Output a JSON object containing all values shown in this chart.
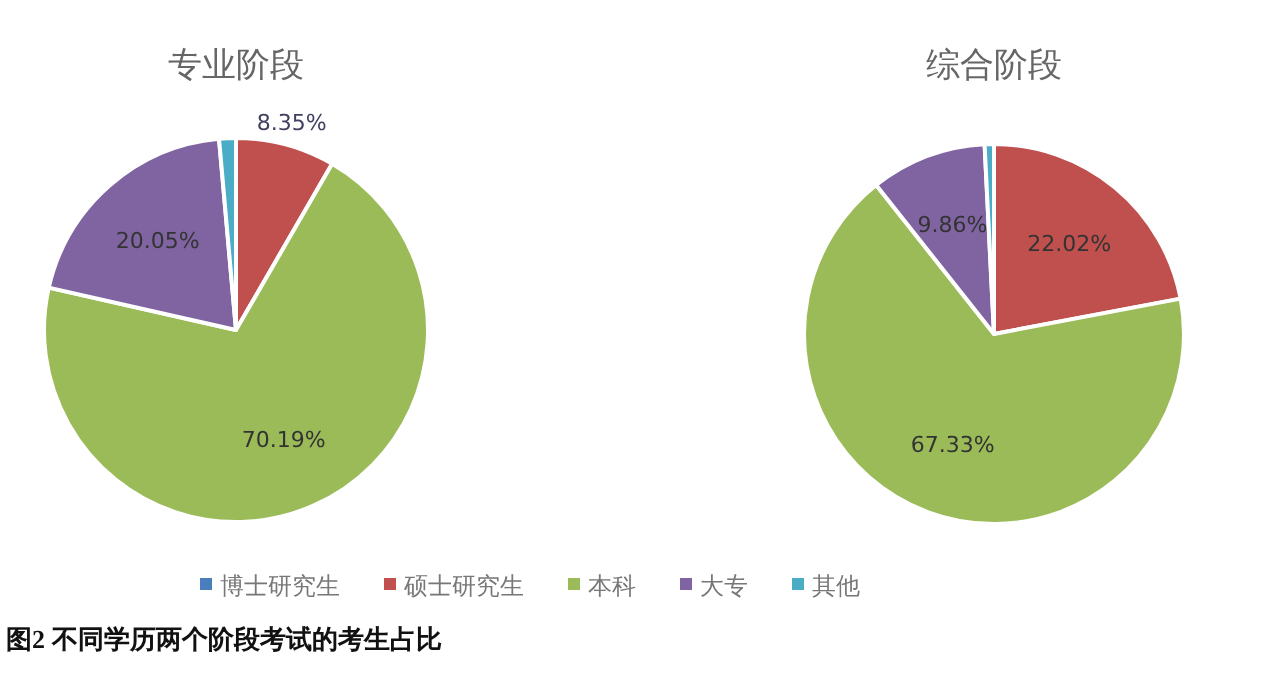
{
  "chart_data": [
    {
      "type": "pie",
      "title": "专业阶段",
      "categories": [
        "博士研究生",
        "硕士研究生",
        "本科",
        "大专",
        "其他"
      ],
      "values": [
        0,
        8.35,
        70.19,
        20.05,
        1.41
      ],
      "colors": [
        "#4a7ebb",
        "#c0504d",
        "#9bbb59",
        "#8064a2",
        "#4bacc6"
      ],
      "value_labels": [
        null,
        "8.35%",
        "70.19%",
        "20.05%",
        null
      ],
      "legend": "bottom",
      "annotations": [
        "图2  不同学历两个阶段考试的考生占比"
      ]
    },
    {
      "type": "pie",
      "title": "综合阶段",
      "categories": [
        null,
        null,
        null,
        null,
        null
      ],
      "values": [
        0,
        22.02,
        67.33,
        9.86,
        0.79
      ],
      "colors": [
        "#4a7ebb",
        "#c0504d",
        "#9bbb59",
        "#8064a2",
        "#4bacc6"
      ],
      "value_labels": [
        null,
        "22.02%",
        "67.33%",
        "9.86%",
        null
      ]
    }
  ]
}
